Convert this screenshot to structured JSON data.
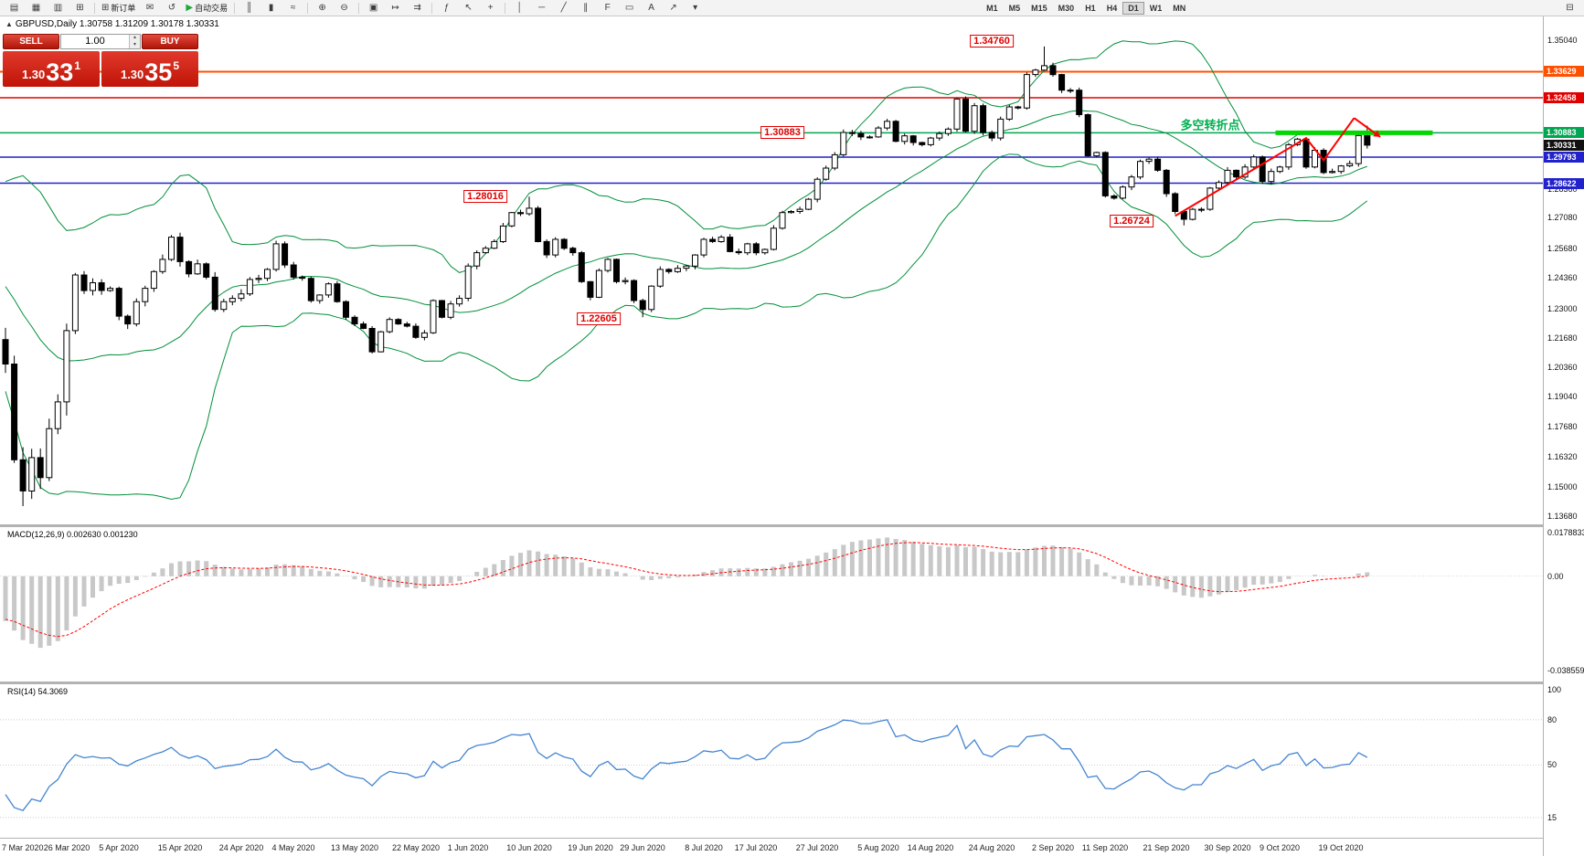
{
  "toolbar": {
    "groups": [
      {
        "name": "standard",
        "items": [
          {
            "name": "new-chart-icon",
            "glyph": "▤"
          },
          {
            "name": "profiles-icon",
            "glyph": "▦"
          },
          {
            "name": "market-watch-icon",
            "glyph": "▥"
          },
          {
            "name": "navigator-icon",
            "glyph": "⊞"
          }
        ]
      },
      {
        "name": "trade",
        "items": [
          {
            "name": "new-order-button",
            "glyph": "⊞",
            "label": "新订单"
          },
          {
            "name": "mail-icon",
            "glyph": "✉"
          },
          {
            "name": "refresh-icon",
            "glyph": "↺"
          },
          {
            "name": "autotrading-button",
            "glyph": "▶",
            "glyph_color": "#1fa83c",
            "label": "自动交易"
          }
        ]
      },
      {
        "name": "chart-type",
        "items": [
          {
            "name": "bar-chart-icon",
            "glyph": "║"
          },
          {
            "name": "candlestick-chart-icon",
            "glyph": "▮"
          },
          {
            "name": "line-chart-icon",
            "glyph": "≈"
          }
        ]
      },
      {
        "name": "zoom",
        "items": [
          {
            "name": "zoom-in-icon",
            "glyph": "⊕"
          },
          {
            "name": "zoom-out-icon",
            "glyph": "⊖"
          }
        ]
      },
      {
        "name": "windows",
        "items": [
          {
            "name": "tile-windows-icon",
            "glyph": "▣"
          },
          {
            "name": "autoscroll-icon",
            "glyph": "↦"
          },
          {
            "name": "chart-shift-icon",
            "glyph": "⇉"
          }
        ]
      },
      {
        "name": "tools",
        "items": [
          {
            "name": "indicators-icon",
            "glyph": "ƒ"
          },
          {
            "name": "cursor-icon",
            "glyph": "↖"
          },
          {
            "name": "crosshair-icon",
            "glyph": "+"
          }
        ]
      },
      {
        "name": "objects",
        "items": [
          {
            "name": "vertical-line-icon",
            "glyph": "│"
          },
          {
            "name": "horizontal-line-icon",
            "glyph": "─"
          },
          {
            "name": "trendline-icon",
            "glyph": "╱"
          },
          {
            "name": "channel-icon",
            "glyph": "∥"
          },
          {
            "name": "fibonacci-icon",
            "glyph": "F"
          },
          {
            "name": "shapes-icon",
            "glyph": "▭"
          },
          {
            "name": "text-label-icon",
            "glyph": "A"
          },
          {
            "name": "arrows-icon",
            "glyph": "↗"
          },
          {
            "name": "dropdown-icon",
            "glyph": "▾"
          }
        ]
      }
    ],
    "timeframes": {
      "items": [
        "M1",
        "M5",
        "M15",
        "M30",
        "H1",
        "H4",
        "D1",
        "W1",
        "MN"
      ],
      "active": "D1"
    },
    "window_icon": {
      "name": "window-controls-icon",
      "glyph": "⊟"
    }
  },
  "chart_header": {
    "collapse_arrow": "▲",
    "symbol_readout": "GBPUSD,Daily 1.30758 1.31209 1.30178 1.30331"
  },
  "one_click": {
    "sell_label": "SELL",
    "buy_label": "BUY",
    "volume": "1.00",
    "sell_big": {
      "prefix": "1.30",
      "pips": "33",
      "pt": "1"
    },
    "buy_big": {
      "prefix": "1.30",
      "pips": "35",
      "pt": "5"
    }
  },
  "price_axis": {
    "labels": [
      "1.35040",
      "1.28360",
      "1.27080",
      "1.25680",
      "1.24360",
      "1.23000",
      "1.21680",
      "1.20360",
      "1.19040",
      "1.17680",
      "1.16320",
      "1.15000",
      "1.13680"
    ],
    "badges": [
      {
        "text": "1.33629",
        "color": "#ff5000"
      },
      {
        "text": "1.32458",
        "color": "#e00000"
      },
      {
        "text": "1.30883",
        "color": "#00a651"
      },
      {
        "text": "1.30331",
        "color": "#111111"
      },
      {
        "text": "1.29793",
        "color": "#2222cc"
      },
      {
        "text": "1.28622",
        "color": "#2222cc"
      }
    ]
  },
  "levels": [
    {
      "price": 1.33629,
      "color": "#ff5000",
      "width": 2
    },
    {
      "price": 1.32458,
      "color": "#e00000",
      "width": 1.5
    },
    {
      "price": 1.30883,
      "color": "#00a651",
      "width": 1.5
    },
    {
      "price": 1.29793,
      "color": "#2222cc",
      "width": 1.5
    },
    {
      "price": 1.28622,
      "color": "#2222cc",
      "width": 1.5
    }
  ],
  "annotations": {
    "price_labels": [
      {
        "text": "1.34760",
        "index": 113,
        "price": 1.35
      },
      {
        "text": "1.30883",
        "index": 89,
        "price": 1.30883
      },
      {
        "text": "1.28016",
        "index": 55,
        "price": 1.2802
      },
      {
        "text": "1.22605",
        "index": 68,
        "price": 1.2253
      },
      {
        "text": "1.26724",
        "index": 129,
        "price": 1.2692
      }
    ],
    "turning_point": {
      "text": "多空转折点",
      "index": 138,
      "price": 1.3125,
      "color": "#00b050"
    },
    "trend_line": {
      "color": "#ff0000",
      "points": [
        [
          134,
          1.2715
        ],
        [
          149,
          1.3065
        ],
        [
          151,
          1.2965
        ],
        [
          154.5,
          1.3155
        ]
      ],
      "arrow_end": [
        157.5,
        1.307
      ]
    },
    "green_segment": {
      "price": 1.30883,
      "from_index": 145.5,
      "to_index": 163.5,
      "color": "#00d800"
    }
  },
  "macd_panel": {
    "label": "MACD(12,26,9)",
    "values": "0.002630 0.001230",
    "axis_labels": [
      "0.0178833",
      "0.00",
      "-0.0385590"
    ],
    "histogram_color": "#c8c8c8",
    "signal_color": "#ff0000",
    "scale_max": 0.02,
    "scale_min": -0.043
  },
  "rsi_panel": {
    "label": "RSI(14)",
    "value": "54.3069",
    "axis_labels": [
      "100",
      "80",
      "50",
      "15"
    ],
    "levels": [
      80,
      50,
      15
    ],
    "line_color": "#4485d1"
  },
  "chart_data": {
    "type": "candlestick",
    "symbol": "GBPUSD",
    "timeframe": "Daily",
    "title": "GBPUSD,Daily",
    "ohlc_current": {
      "open": 1.30758,
      "high": 1.31209,
      "low": 1.30178,
      "close": 1.30331
    },
    "ylim": [
      1.133,
      1.3611
    ],
    "bollinger": {
      "period": 20,
      "deviation": 2,
      "color": "#008f39"
    },
    "x_tick_labels": [
      "7 Mar 2020",
      "26 Mar 2020",
      "5 Apr 2020",
      "15 Apr 2020",
      "24 Apr 2020",
      "4 May 2020",
      "13 May 2020",
      "22 May 2020",
      "1 Jun 2020",
      "10 Jun 2020",
      "19 Jun 2020",
      "29 Jun 2020",
      "8 Jul 2020",
      "17 Jul 2020",
      "27 Jul 2020",
      "5 Aug 2020",
      "14 Aug 2020",
      "24 Aug 2020",
      "2 Sep 2020",
      "11 Sep 2020",
      "21 Sep 2020",
      "30 Sep 2020",
      "9 Oct 2020",
      "19 Oct 2020"
    ],
    "pre_closes": [
      1.301,
      1.3035,
      1.3,
      1.298,
      1.309,
      1.3105,
      1.3085,
      1.306,
      1.3045,
      1.2995,
      1.294,
      1.2985,
      1.2955,
      1.295,
      1.29,
      1.2895,
      1.2985,
      1.3,
      1.296,
      1.2905,
      1.287,
      1.28,
      1.279,
      1.275,
      1.272,
      1.265,
      1.258,
      1.251,
      1.243,
      1.231,
      1.227,
      1.216,
      1.229,
      1.228,
      1.216,
      1.211,
      1.228,
      1.241,
      1.226,
      1.216
    ],
    "closes": [
      1.205,
      1.162,
      1.148,
      1.163,
      1.154,
      1.176,
      1.188,
      1.22,
      1.245,
      1.238,
      1.2415,
      1.238,
      1.239,
      1.2265,
      1.223,
      1.233,
      1.239,
      1.2465,
      1.252,
      1.262,
      1.251,
      1.2455,
      1.25,
      1.244,
      1.2295,
      1.233,
      1.2345,
      1.2365,
      1.243,
      1.2435,
      1.2475,
      1.259,
      1.2495,
      1.244,
      1.2435,
      1.2335,
      1.236,
      1.241,
      1.233,
      1.226,
      1.223,
      1.221,
      1.2105,
      1.2195,
      1.225,
      1.223,
      1.222,
      1.217,
      1.219,
      1.2335,
      1.226,
      1.232,
      1.2345,
      1.249,
      1.255,
      1.257,
      1.26,
      1.267,
      1.273,
      1.2725,
      1.275,
      1.26,
      1.254,
      1.261,
      1.257,
      1.255,
      1.242,
      1.235,
      1.247,
      1.252,
      1.242,
      1.2425,
      1.2335,
      1.2295,
      1.24,
      1.2475,
      1.2465,
      1.248,
      1.249,
      1.254,
      1.261,
      1.26,
      1.262,
      1.2555,
      1.255,
      1.259,
      1.255,
      1.2565,
      1.266,
      1.273,
      1.2735,
      1.2745,
      1.279,
      1.288,
      1.293,
      1.299,
      1.309,
      1.3085,
      1.307,
      1.307,
      1.311,
      1.314,
      1.305,
      1.3075,
      1.3045,
      1.3035,
      1.3065,
      1.3085,
      1.3105,
      1.324,
      1.3095,
      1.321,
      1.309,
      1.3065,
      1.315,
      1.3205,
      1.32,
      1.335,
      1.337,
      1.339,
      1.335,
      1.328,
      1.328,
      1.317,
      1.2985,
      1.3,
      1.2805,
      1.2795,
      1.2845,
      1.289,
      1.296,
      1.297,
      1.292,
      1.2815,
      1.2735,
      1.27,
      1.2745,
      1.2745,
      1.284,
      1.2865,
      1.292,
      1.289,
      1.2935,
      1.298,
      1.287,
      1.2915,
      1.2935,
      1.3035,
      1.306,
      1.2935,
      1.301,
      1.291,
      1.2915,
      1.294,
      1.295,
      1.3076,
      1.30331
    ],
    "overrides": {
      "2": {
        "low": 1.1412
      },
      "60": {
        "high": 1.28016
      },
      "73": {
        "low": 1.22605
      },
      "119": {
        "high": 1.3476
      },
      "135": {
        "low": 1.26724
      },
      "156": {
        "open": 1.30758,
        "high": 1.31209,
        "low": 1.30178,
        "close": 1.30331
      }
    }
  }
}
